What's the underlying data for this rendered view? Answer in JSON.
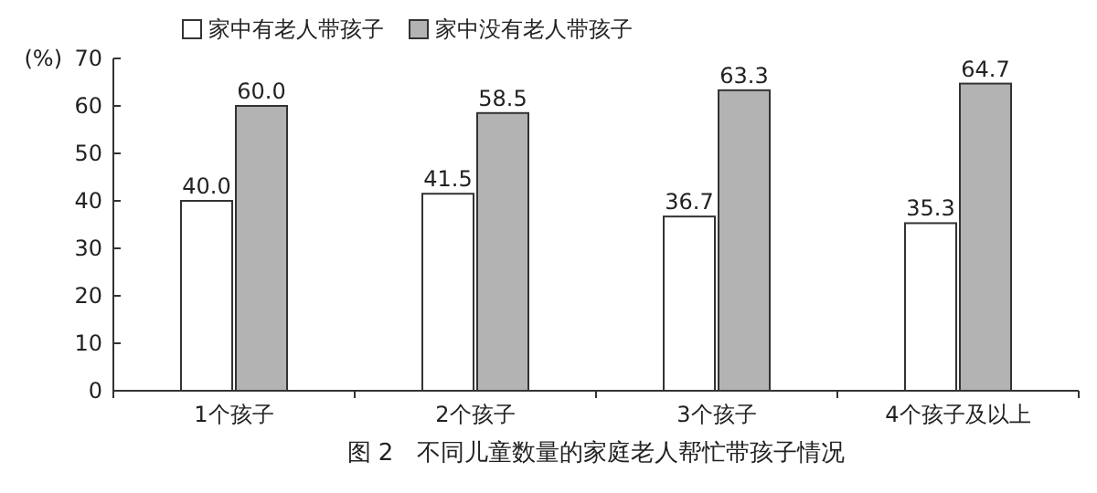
{
  "chart_data": {
    "type": "bar",
    "title": "图 2　不同儿童数量的家庭老人帮忙带孩子情况",
    "ylabel": "(%)",
    "categories": [
      "1个孩子",
      "2个孩子",
      "3个孩子",
      "4个孩子及以上"
    ],
    "series": [
      {
        "name": "家中有老人带孩子",
        "color": "#ffffff",
        "values": [
          40.0,
          41.5,
          36.7,
          35.3
        ],
        "value_labels": [
          "40.0",
          "41.5",
          "36.7",
          "35.3"
        ]
      },
      {
        "name": "家中没有老人带孩子",
        "color": "#b3b3b3",
        "values": [
          60.0,
          58.5,
          63.3,
          64.7
        ],
        "value_labels": [
          "60.0",
          "58.5",
          "63.3",
          "64.7"
        ]
      }
    ],
    "ylim": [
      0,
      70
    ],
    "yticks": [
      0,
      10,
      20,
      30,
      40,
      50,
      60,
      70
    ],
    "legend": "top",
    "grid": false
  }
}
